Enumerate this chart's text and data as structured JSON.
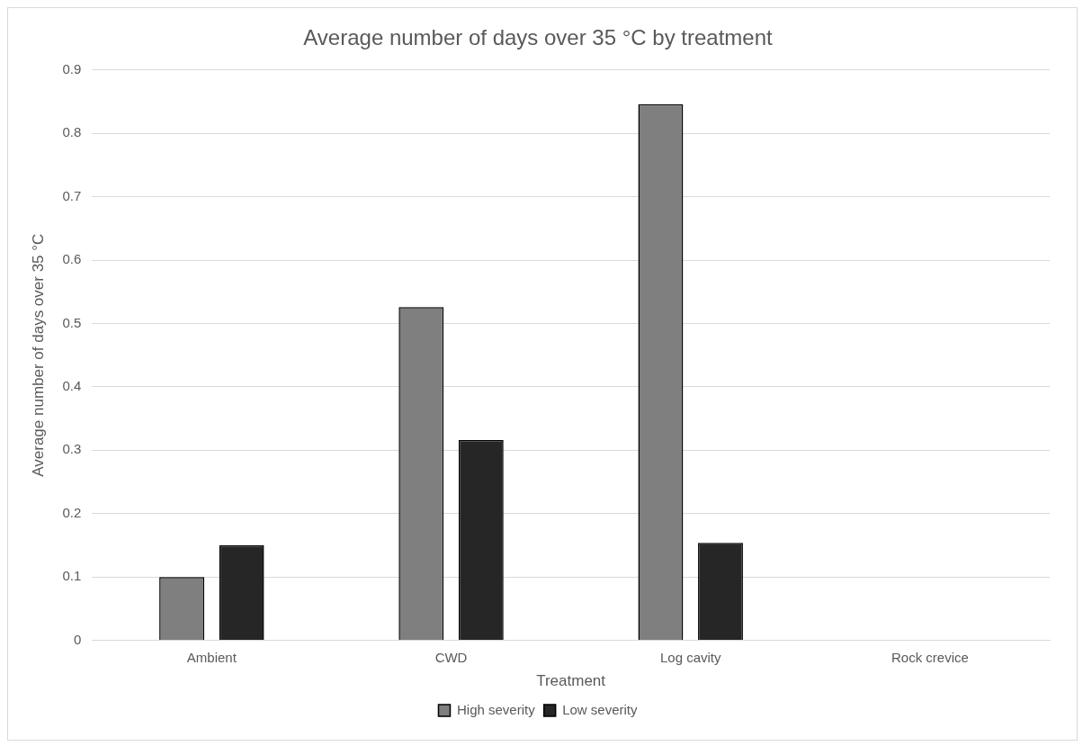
{
  "chart_data": {
    "type": "bar",
    "title": "Average number of days over 35 °C by treatment",
    "xlabel": "Treatment",
    "ylabel": "Average number of days over 35 °C",
    "categories": [
      "Ambient",
      "CWD",
      "Log cavity",
      "Rock crevice"
    ],
    "series": [
      {
        "name": "High severity",
        "color": "#7f7f7f",
        "values": [
          0.1,
          0.526,
          0.846,
          0
        ]
      },
      {
        "name": "Low severity",
        "color": "#262626",
        "values": [
          0.15,
          0.316,
          0.154,
          0
        ]
      }
    ],
    "ylim": [
      0,
      0.9
    ],
    "yticks": [
      0,
      0.1,
      0.2,
      0.3,
      0.4,
      0.5,
      0.6,
      0.7,
      0.8,
      0.9
    ],
    "grid": "y",
    "legend": "bottom"
  }
}
